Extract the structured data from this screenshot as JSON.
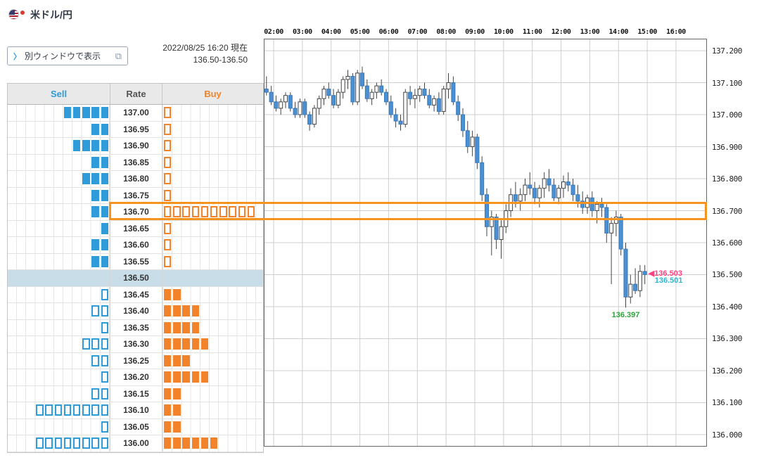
{
  "header": {
    "pair_title": "米ドル/円",
    "popup_button": {
      "chevron": "〉",
      "label": "別ウィンドウで表示"
    },
    "timestamp": "2022/08/25 16:20 現在",
    "range": "136.50-136.50"
  },
  "icons": {
    "popup_window": "⧉",
    "left_arrow": "◀"
  },
  "board": {
    "columns": {
      "sell": "Sell",
      "rate": "Rate",
      "buy": "Buy"
    },
    "highlight_rate": "136.70",
    "current_rate": "136.50",
    "colors": {
      "sell": "#2f9bd8",
      "buy": "#f2832b",
      "highlight": "#f6921e",
      "current_row_bg": "#c9dde9"
    },
    "rows": [
      {
        "rate": "137.00",
        "sell_filled": 5,
        "sell_outline": 0,
        "buy_filled": 0,
        "buy_outline": 1
      },
      {
        "rate": "136.95",
        "sell_filled": 2,
        "sell_outline": 0,
        "buy_filled": 0,
        "buy_outline": 1
      },
      {
        "rate": "136.90",
        "sell_filled": 4,
        "sell_outline": 0,
        "buy_filled": 0,
        "buy_outline": 1
      },
      {
        "rate": "136.85",
        "sell_filled": 2,
        "sell_outline": 0,
        "buy_filled": 0,
        "buy_outline": 1
      },
      {
        "rate": "136.80",
        "sell_filled": 3,
        "sell_outline": 0,
        "buy_filled": 0,
        "buy_outline": 1
      },
      {
        "rate": "136.75",
        "sell_filled": 2,
        "sell_outline": 0,
        "buy_filled": 0,
        "buy_outline": 1
      },
      {
        "rate": "136.70",
        "sell_filled": 2,
        "sell_outline": 0,
        "buy_filled": 0,
        "buy_outline": 10
      },
      {
        "rate": "136.65",
        "sell_filled": 1,
        "sell_outline": 0,
        "buy_filled": 0,
        "buy_outline": 1
      },
      {
        "rate": "136.60",
        "sell_filled": 2,
        "sell_outline": 0,
        "buy_filled": 0,
        "buy_outline": 1
      },
      {
        "rate": "136.55",
        "sell_filled": 2,
        "sell_outline": 0,
        "buy_filled": 0,
        "buy_outline": 1
      },
      {
        "rate": "136.50",
        "sell_filled": 0,
        "sell_outline": 0,
        "buy_filled": 0,
        "buy_outline": 0
      },
      {
        "rate": "136.45",
        "sell_filled": 0,
        "sell_outline": 1,
        "buy_filled": 2,
        "buy_outline": 0
      },
      {
        "rate": "136.40",
        "sell_filled": 0,
        "sell_outline": 2,
        "buy_filled": 4,
        "buy_outline": 0
      },
      {
        "rate": "136.35",
        "sell_filled": 0,
        "sell_outline": 1,
        "buy_filled": 4,
        "buy_outline": 0
      },
      {
        "rate": "136.30",
        "sell_filled": 0,
        "sell_outline": 3,
        "buy_filled": 5,
        "buy_outline": 0
      },
      {
        "rate": "136.25",
        "sell_filled": 0,
        "sell_outline": 2,
        "buy_filled": 3,
        "buy_outline": 0
      },
      {
        "rate": "136.20",
        "sell_filled": 0,
        "sell_outline": 1,
        "buy_filled": 5,
        "buy_outline": 0
      },
      {
        "rate": "136.15",
        "sell_filled": 0,
        "sell_outline": 2,
        "buy_filled": 2,
        "buy_outline": 0
      },
      {
        "rate": "136.10",
        "sell_filled": 0,
        "sell_outline": 8,
        "buy_filled": 2,
        "buy_outline": 0
      },
      {
        "rate": "136.05",
        "sell_filled": 0,
        "sell_outline": 1,
        "buy_filled": 2,
        "buy_outline": 0
      },
      {
        "rate": "136.00",
        "sell_filled": 0,
        "sell_outline": 8,
        "buy_filled": 6,
        "buy_outline": 0
      }
    ]
  },
  "chart_data": {
    "type": "candlestick",
    "interval_minutes": 10,
    "start_time": "01:40",
    "time_labels": [
      "02:00",
      "03:00",
      "04:00",
      "05:00",
      "06:00",
      "07:00",
      "08:00",
      "09:00",
      "10:00",
      "11:00",
      "12:00",
      "13:00",
      "14:00",
      "15:00",
      "16:00"
    ],
    "price_labels": [
      "137.200",
      "137.100",
      "137.000",
      "136.900",
      "136.800",
      "136.700",
      "136.600",
      "136.500",
      "136.400",
      "136.300",
      "136.200",
      "136.100",
      "136.000"
    ],
    "y_range": [
      135.9625,
      137.2375
    ],
    "highlight_price": 136.7,
    "grid": true,
    "colors": {
      "up_fill": "#ffffff",
      "up_stroke": "#444444",
      "down_fill": "#4a90d2",
      "down_stroke": "#3a78b8",
      "wick": "#444444",
      "grid": "#cfcfcf",
      "border": "#666666"
    },
    "markers": {
      "ask": {
        "label": "136.503",
        "color": "#ff4080"
      },
      "bid": {
        "label": "136.501",
        "color": "#29b6d8"
      },
      "low": {
        "label": "136.397",
        "color": "#2fa33c"
      }
    },
    "candles": [
      [
        137.08,
        137.12,
        137.06,
        137.07
      ],
      [
        137.07,
        137.09,
        137.03,
        137.04
      ],
      [
        137.04,
        137.06,
        137.01,
        137.02
      ],
      [
        137.02,
        137.05,
        137.0,
        137.04
      ],
      [
        137.04,
        137.07,
        137.02,
        137.06
      ],
      [
        137.06,
        137.07,
        137.01,
        137.02
      ],
      [
        137.02,
        137.04,
        136.99,
        137.0
      ],
      [
        137.0,
        137.05,
        136.99,
        137.04
      ],
      [
        137.04,
        137.05,
        136.99,
        137.0
      ],
      [
        137.0,
        137.01,
        136.95,
        136.97
      ],
      [
        136.97,
        137.03,
        136.96,
        137.02
      ],
      [
        137.02,
        137.06,
        137.0,
        137.05
      ],
      [
        137.05,
        137.09,
        137.03,
        137.08
      ],
      [
        137.08,
        137.1,
        137.05,
        137.06
      ],
      [
        137.06,
        137.08,
        137.02,
        137.03
      ],
      [
        137.03,
        137.08,
        137.02,
        137.07
      ],
      [
        137.07,
        137.12,
        137.05,
        137.11
      ],
      [
        137.11,
        137.14,
        137.08,
        137.12
      ],
      [
        137.12,
        137.13,
        137.03,
        137.04
      ],
      [
        137.04,
        137.14,
        137.03,
        137.13
      ],
      [
        137.13,
        137.15,
        137.08,
        137.09
      ],
      [
        137.09,
        137.11,
        137.04,
        137.05
      ],
      [
        137.05,
        137.08,
        137.03,
        137.07
      ],
      [
        137.07,
        137.1,
        137.05,
        137.09
      ],
      [
        137.09,
        137.11,
        137.06,
        137.07
      ],
      [
        137.07,
        137.08,
        137.03,
        137.04
      ],
      [
        137.04,
        137.06,
        136.99,
        137.0
      ],
      [
        137.0,
        137.02,
        136.96,
        136.98
      ],
      [
        136.98,
        137.0,
        136.95,
        136.97
      ],
      [
        136.97,
        137.08,
        136.96,
        137.07
      ],
      [
        137.07,
        137.09,
        137.03,
        137.05
      ],
      [
        137.05,
        137.08,
        137.02,
        137.06
      ],
      [
        137.06,
        137.09,
        137.04,
        137.08
      ],
      [
        137.08,
        137.1,
        137.05,
        137.06
      ],
      [
        137.06,
        137.08,
        137.02,
        137.03
      ],
      [
        137.03,
        137.06,
        137.01,
        137.05
      ],
      [
        137.05,
        137.07,
        137.0,
        137.01
      ],
      [
        137.01,
        137.09,
        137.0,
        137.08
      ],
      [
        137.08,
        137.13,
        137.05,
        137.1
      ],
      [
        137.1,
        137.12,
        137.03,
        137.04
      ],
      [
        137.04,
        137.06,
        136.98,
        137.0
      ],
      [
        137.0,
        137.02,
        136.93,
        136.95
      ],
      [
        136.95,
        136.98,
        136.88,
        136.9
      ],
      [
        136.9,
        136.95,
        136.87,
        136.93
      ],
      [
        136.93,
        136.94,
        136.83,
        136.85
      ],
      [
        136.85,
        136.87,
        136.73,
        136.75
      ],
      [
        136.75,
        136.77,
        136.62,
        136.65
      ],
      [
        136.65,
        136.7,
        136.56,
        136.68
      ],
      [
        136.68,
        136.69,
        136.58,
        136.61
      ],
      [
        136.61,
        136.67,
        136.55,
        136.65
      ],
      [
        136.65,
        136.72,
        136.63,
        136.7
      ],
      [
        136.7,
        136.77,
        136.68,
        136.75
      ],
      [
        136.75,
        136.79,
        136.71,
        136.73
      ],
      [
        136.73,
        136.77,
        136.7,
        136.75
      ],
      [
        136.75,
        136.8,
        136.73,
        136.78
      ],
      [
        136.78,
        136.82,
        136.75,
        136.77
      ],
      [
        136.77,
        136.79,
        136.72,
        136.74
      ],
      [
        136.74,
        136.78,
        136.71,
        136.77
      ],
      [
        136.77,
        136.82,
        136.74,
        136.8
      ],
      [
        136.8,
        136.83,
        136.76,
        136.78
      ],
      [
        136.78,
        136.8,
        136.73,
        136.74
      ],
      [
        136.74,
        136.78,
        136.72,
        136.77
      ],
      [
        136.77,
        136.81,
        136.74,
        136.79
      ],
      [
        136.79,
        136.82,
        136.76,
        136.78
      ],
      [
        136.78,
        136.8,
        136.73,
        136.75
      ],
      [
        136.75,
        136.78,
        136.71,
        136.73
      ],
      [
        136.73,
        136.76,
        136.69,
        136.71
      ],
      [
        136.71,
        136.75,
        136.69,
        136.74
      ],
      [
        136.74,
        136.76,
        136.68,
        136.7
      ],
      [
        136.7,
        136.73,
        136.66,
        136.72
      ],
      [
        136.72,
        136.74,
        136.68,
        136.71
      ],
      [
        136.71,
        136.72,
        136.6,
        136.63
      ],
      [
        136.63,
        136.68,
        136.47,
        136.66
      ],
      [
        136.66,
        136.7,
        136.62,
        136.68
      ],
      [
        136.68,
        136.69,
        136.56,
        136.58
      ],
      [
        136.58,
        136.6,
        136.397,
        136.43
      ],
      [
        136.43,
        136.5,
        136.41,
        136.47
      ],
      [
        136.47,
        136.52,
        136.44,
        136.45
      ],
      [
        136.45,
        136.53,
        136.43,
        136.51
      ],
      [
        136.51,
        136.53,
        136.47,
        136.5
      ]
    ]
  }
}
